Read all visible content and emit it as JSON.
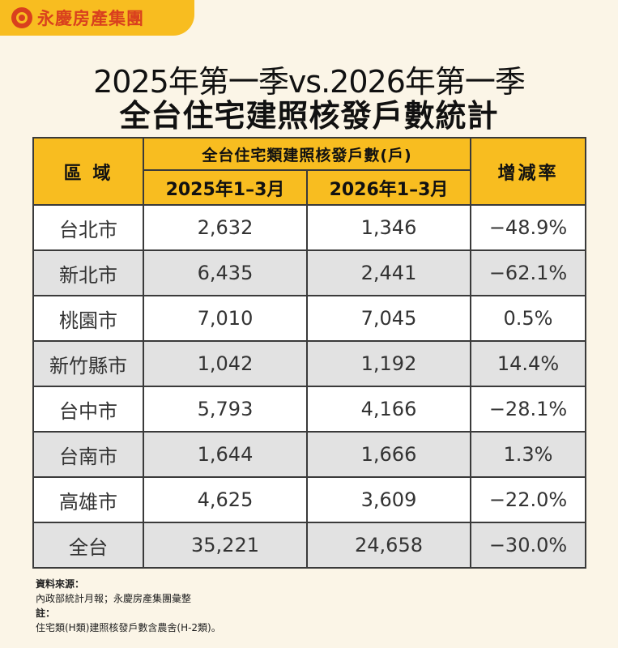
{
  "brand": {
    "name": "永慶房產集團",
    "logo_icon": "swirl-logo-icon"
  },
  "title": {
    "line1": "2025年第一季vs.2026年第一季",
    "line2": "全台住宅建照核發戶數統計"
  },
  "table": {
    "headers": {
      "region": "區 域",
      "group": "全台住宅類建照核發戶數(戶)",
      "year1": "2025年1–3月",
      "year2": "2026年1–3月",
      "rate": "增減率"
    },
    "rows": [
      {
        "region": "台北市",
        "y2025": "2,632",
        "y2026": "1,346",
        "rate": "−48.9%"
      },
      {
        "region": "新北市",
        "y2025": "6,435",
        "y2026": "2,441",
        "rate": "−62.1%"
      },
      {
        "region": "桃園市",
        "y2025": "7,010",
        "y2026": "7,045",
        "rate": "0.5%"
      },
      {
        "region": "新竹縣市",
        "y2025": "1,042",
        "y2026": "1,192",
        "rate": "14.4%"
      },
      {
        "region": "台中市",
        "y2025": "5,793",
        "y2026": "4,166",
        "rate": "−28.1%"
      },
      {
        "region": "台南市",
        "y2025": "1,644",
        "y2026": "1,666",
        "rate": "1.3%"
      },
      {
        "region": "高雄市",
        "y2025": "4,625",
        "y2026": "3,609",
        "rate": "−22.0%"
      },
      {
        "region": "全台",
        "y2025": "35,221",
        "y2026": "24,658",
        "rate": "−30.0%"
      }
    ]
  },
  "notes": {
    "source_label": "資料來源：",
    "source_text": "內政部統計月報；永慶房產集團彙整",
    "note_label": "註：",
    "note_text": "住宅類(H類)建照核發戶數含農舍(H-2類)。"
  },
  "colors": {
    "accent": "#f8bd20",
    "brand_red": "#d9401e",
    "background": "#fbf5e7",
    "alt_row": "#e2e2e2"
  },
  "chart_data": {
    "type": "table",
    "title": "2025年第一季vs.2026年第一季 全台住宅建照核發戶數統計",
    "columns": [
      "區 域",
      "2025年1–3月",
      "2026年1–3月",
      "增減率"
    ],
    "rows": [
      [
        "台北市",
        2632,
        1346,
        "−48.9%"
      ],
      [
        "新北市",
        6435,
        2441,
        "−62.1%"
      ],
      [
        "桃園市",
        7010,
        7045,
        "0.5%"
      ],
      [
        "新竹縣市",
        1042,
        1192,
        "14.4%"
      ],
      [
        "台中市",
        5793,
        4166,
        "−28.1%"
      ],
      [
        "台南市",
        1644,
        1666,
        "1.3%"
      ],
      [
        "高雄市",
        4625,
        3609,
        "−22.0%"
      ],
      [
        "全台",
        35221,
        24658,
        "−30.0%"
      ]
    ]
  }
}
